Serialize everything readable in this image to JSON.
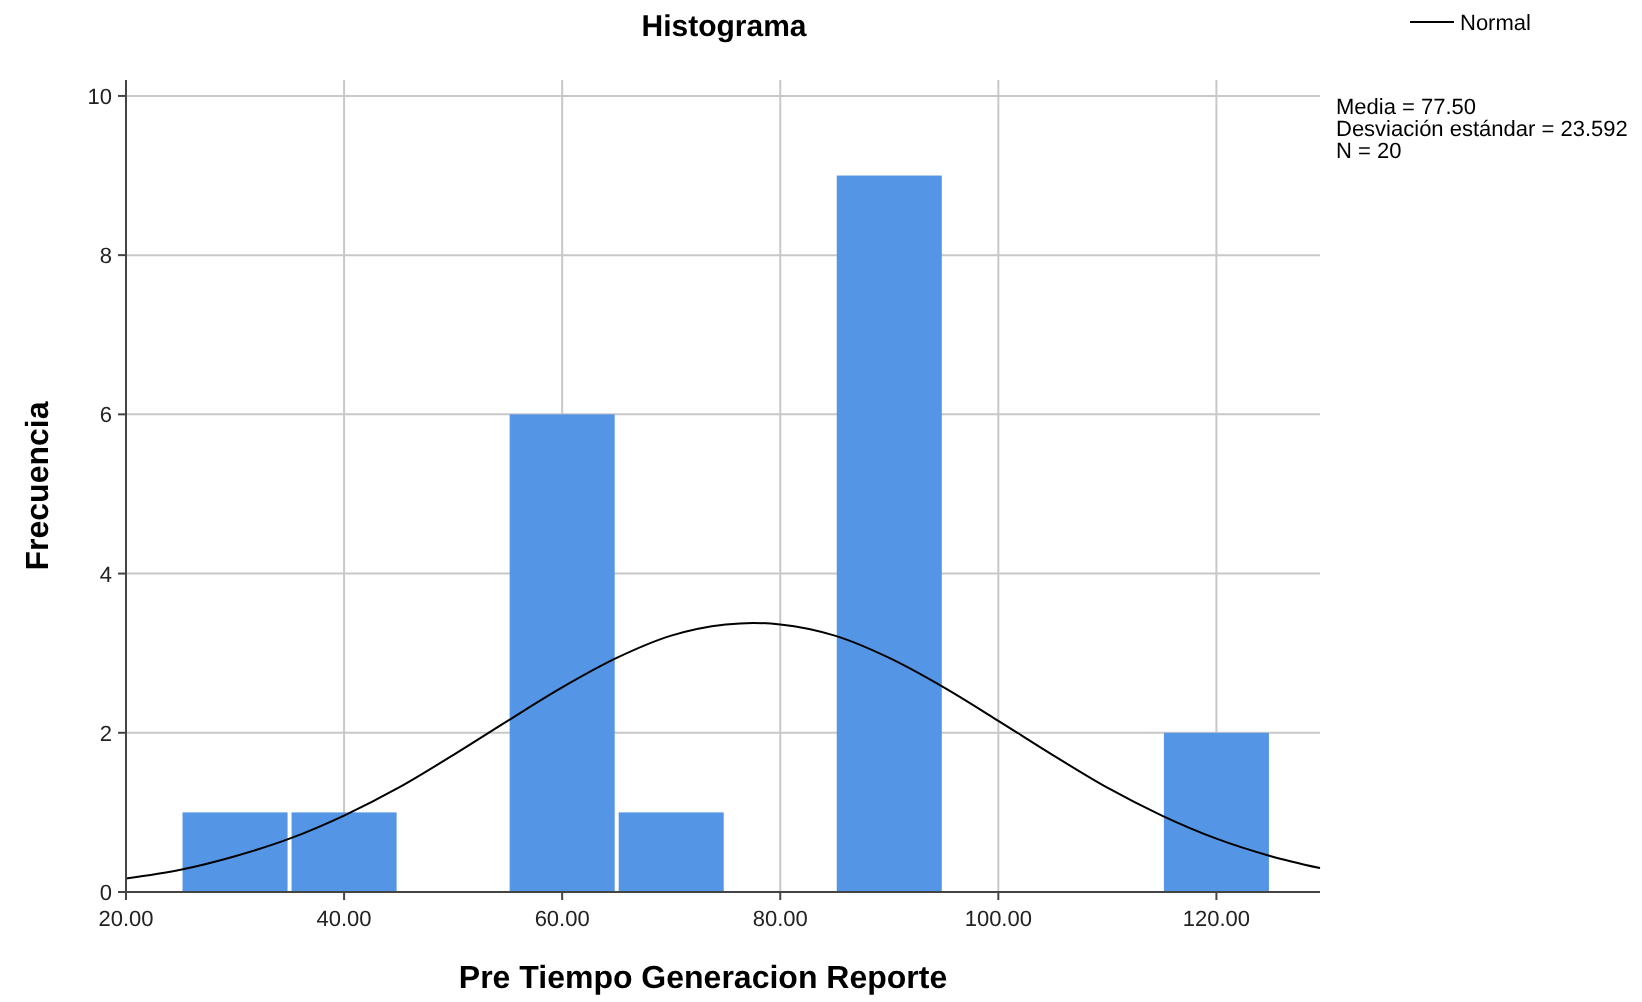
{
  "chart_data": {
    "type": "histogram",
    "title": "Histograma",
    "xlabel": "Pre Tiempo Generacion Reporte",
    "ylabel": "Frecuencia",
    "bins": [
      25,
      35,
      45,
      55,
      65,
      75,
      85,
      95,
      105,
      115,
      125
    ],
    "values": [
      1,
      1,
      0,
      6,
      1,
      0,
      9,
      0,
      0,
      2
    ],
    "color": "#5595e5",
    "series": [
      {
        "type": "line",
        "name": "Normal",
        "color": "#000000",
        "x": [
          20,
          25,
          30,
          35,
          40,
          45,
          50,
          55,
          60,
          65,
          70,
          75,
          77.5,
          80,
          85,
          90,
          95,
          100,
          105,
          110,
          115,
          120,
          125,
          129.5
        ],
        "values": [
          0.17,
          0.28,
          0.45,
          0.67,
          0.96,
          1.31,
          1.72,
          2.15,
          2.57,
          2.94,
          3.22,
          3.36,
          3.38,
          3.36,
          3.22,
          2.94,
          2.57,
          2.15,
          1.72,
          1.31,
          0.96,
          0.67,
          0.45,
          0.3
        ]
      }
    ],
    "xlim": [
      20,
      129.5
    ],
    "ylim": [
      0,
      10.2
    ],
    "xticks": [
      {
        "value": 20,
        "label": "20.00"
      },
      {
        "value": 40,
        "label": "40.00"
      },
      {
        "value": 60,
        "label": "60.00"
      },
      {
        "value": 80,
        "label": "80.00"
      },
      {
        "value": 100,
        "label": "100.00"
      },
      {
        "value": 120,
        "label": "120.00"
      }
    ],
    "yticks": [
      0,
      2,
      4,
      6,
      8,
      10
    ],
    "grid": true,
    "legend": "top right",
    "annotations": [
      "Media = 77.50",
      "Desviación estándar = 23.592",
      "N = 20"
    ]
  }
}
